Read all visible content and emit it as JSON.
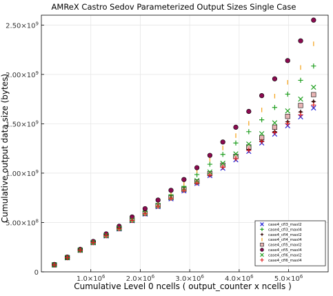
{
  "chart_data": {
    "type": "scatter",
    "title": "AMReX Castro Sedov Parameterized Output Sizes Single Case",
    "xlabel": "Cumulative Level 0 ncells ( output_counter x ncells )",
    "ylabel": "Cumulative output data size (bytes)",
    "xlim": [
      0,
      5800000
    ],
    "ylim": [
      0,
      2600000000
    ],
    "grid": true,
    "legend_position": "bottom-right",
    "x_ticks": [
      {
        "value": 1000000,
        "mantissa": "1.0×10",
        "exp": "6"
      },
      {
        "value": 2000000,
        "mantissa": "2.0×10",
        "exp": "6"
      },
      {
        "value": 3000000,
        "mantissa": "3.0×10",
        "exp": "6"
      },
      {
        "value": 4000000,
        "mantissa": "4.0×10",
        "exp": "6"
      },
      {
        "value": 5000000,
        "mantissa": "5.0×10",
        "exp": "6"
      }
    ],
    "y_ticks": [
      {
        "value": 0,
        "mantissa": "0",
        "exp": ""
      },
      {
        "value": 500000000,
        "mantissa": "5.00×10",
        "exp": "8"
      },
      {
        "value": 1000000000,
        "mantissa": "1.00×10",
        "exp": "9"
      },
      {
        "value": 1500000000,
        "mantissa": "1.50×10",
        "exp": "9"
      },
      {
        "value": 2000000000,
        "mantissa": "2.00×10",
        "exp": "9"
      },
      {
        "value": 2500000000,
        "mantissa": "2.50×10",
        "exp": "9"
      }
    ],
    "x": [
      262144,
      524288,
      786432,
      1048576,
      1310720,
      1572864,
      1835008,
      2097152,
      2359296,
      2621440,
      2883584,
      3145728,
      3407872,
      3670016,
      3932160,
      4194304,
      4456448,
      4718592,
      4980736,
      5242880,
      5505024
    ],
    "series": [
      {
        "name": "case4_cfl3_maxl2",
        "color": "#1f1fd6",
        "marker": "x",
        "values": [
          70000000,
          142000000,
          218000000,
          295000000,
          363000000,
          434000000,
          518000000,
          585000000,
          660000000,
          740000000,
          820000000,
          895000000,
          975000000,
          1050000000,
          1135000000,
          1220000000,
          1305000000,
          1395000000,
          1480000000,
          1570000000,
          1660000000
        ]
      },
      {
        "name": "case4_cfl3_maxl4",
        "color": "#1e9e1e",
        "marker": "plus",
        "values": [
          72000000,
          146000000,
          222000000,
          300000000,
          373000000,
          444000000,
          534000000,
          610000000,
          690000000,
          780000000,
          865000000,
          985000000,
          1090000000,
          1190000000,
          1305000000,
          1420000000,
          1540000000,
          1665000000,
          1800000000,
          1940000000,
          2085000000
        ]
      },
      {
        "name": "case4_cfl4_maxl2",
        "color": "#3a0f0f",
        "marker": "star4",
        "values": [
          71000000,
          143000000,
          219000000,
          296000000,
          365000000,
          436000000,
          520000000,
          588000000,
          664000000,
          745000000,
          826000000,
          902000000,
          985000000,
          1065000000,
          1150000000,
          1240000000,
          1325000000,
          1420000000,
          1520000000,
          1620000000,
          1725000000
        ]
      },
      {
        "name": "case4_cfl4_maxl4",
        "color": "#f5a623",
        "marker": "vline",
        "values": [
          73000000,
          148000000,
          225000000,
          304000000,
          378000000,
          452000000,
          545000000,
          625000000,
          710000000,
          805000000,
          895000000,
          1025000000,
          1140000000,
          1255000000,
          1380000000,
          1505000000,
          1640000000,
          1780000000,
          1920000000,
          2070000000,
          2310000000
        ]
      },
      {
        "name": "case4_cfl5_maxl2",
        "color": "#e8b4b4",
        "marker": "square",
        "values": [
          71000000,
          144000000,
          220000000,
          297000000,
          368000000,
          440000000,
          523000000,
          593000000,
          670000000,
          752000000,
          835000000,
          912000000,
          995000000,
          1080000000,
          1170000000,
          1265000000,
          1360000000,
          1465000000,
          1575000000,
          1685000000,
          1795000000
        ]
      },
      {
        "name": "case4_cfl5_maxl4",
        "color": "#8b0a50",
        "marker": "circle",
        "values": [
          74000000,
          150000000,
          228000000,
          308000000,
          385000000,
          462000000,
          556000000,
          640000000,
          727000000,
          826000000,
          935000000,
          1055000000,
          1180000000,
          1315000000,
          1465000000,
          1625000000,
          1785000000,
          1955000000,
          2140000000,
          2340000000,
          2550000000
        ]
      },
      {
        "name": "case4_cfl6_maxl2",
        "color": "#1e9e1e",
        "marker": "x",
        "values": [
          71000000,
          145000000,
          221000000,
          299000000,
          370000000,
          442000000,
          526000000,
          597000000,
          675000000,
          760000000,
          845000000,
          925000000,
          1012000000,
          1100000000,
          1195000000,
          1295000000,
          1400000000,
          1510000000,
          1630000000,
          1750000000,
          1870000000
        ]
      },
      {
        "name": "case4_cfl6_maxl4",
        "color": "#e02020",
        "marker": "plus",
        "values": [
          70000000,
          143000000,
          219000000,
          296000000,
          366000000,
          437000000,
          521000000,
          589000000,
          665000000,
          745000000,
          825000000,
          900000000,
          980000000,
          1060000000,
          1145000000,
          1230000000,
          1320000000,
          1410000000,
          1500000000,
          1590000000,
          1690000000
        ]
      }
    ]
  }
}
